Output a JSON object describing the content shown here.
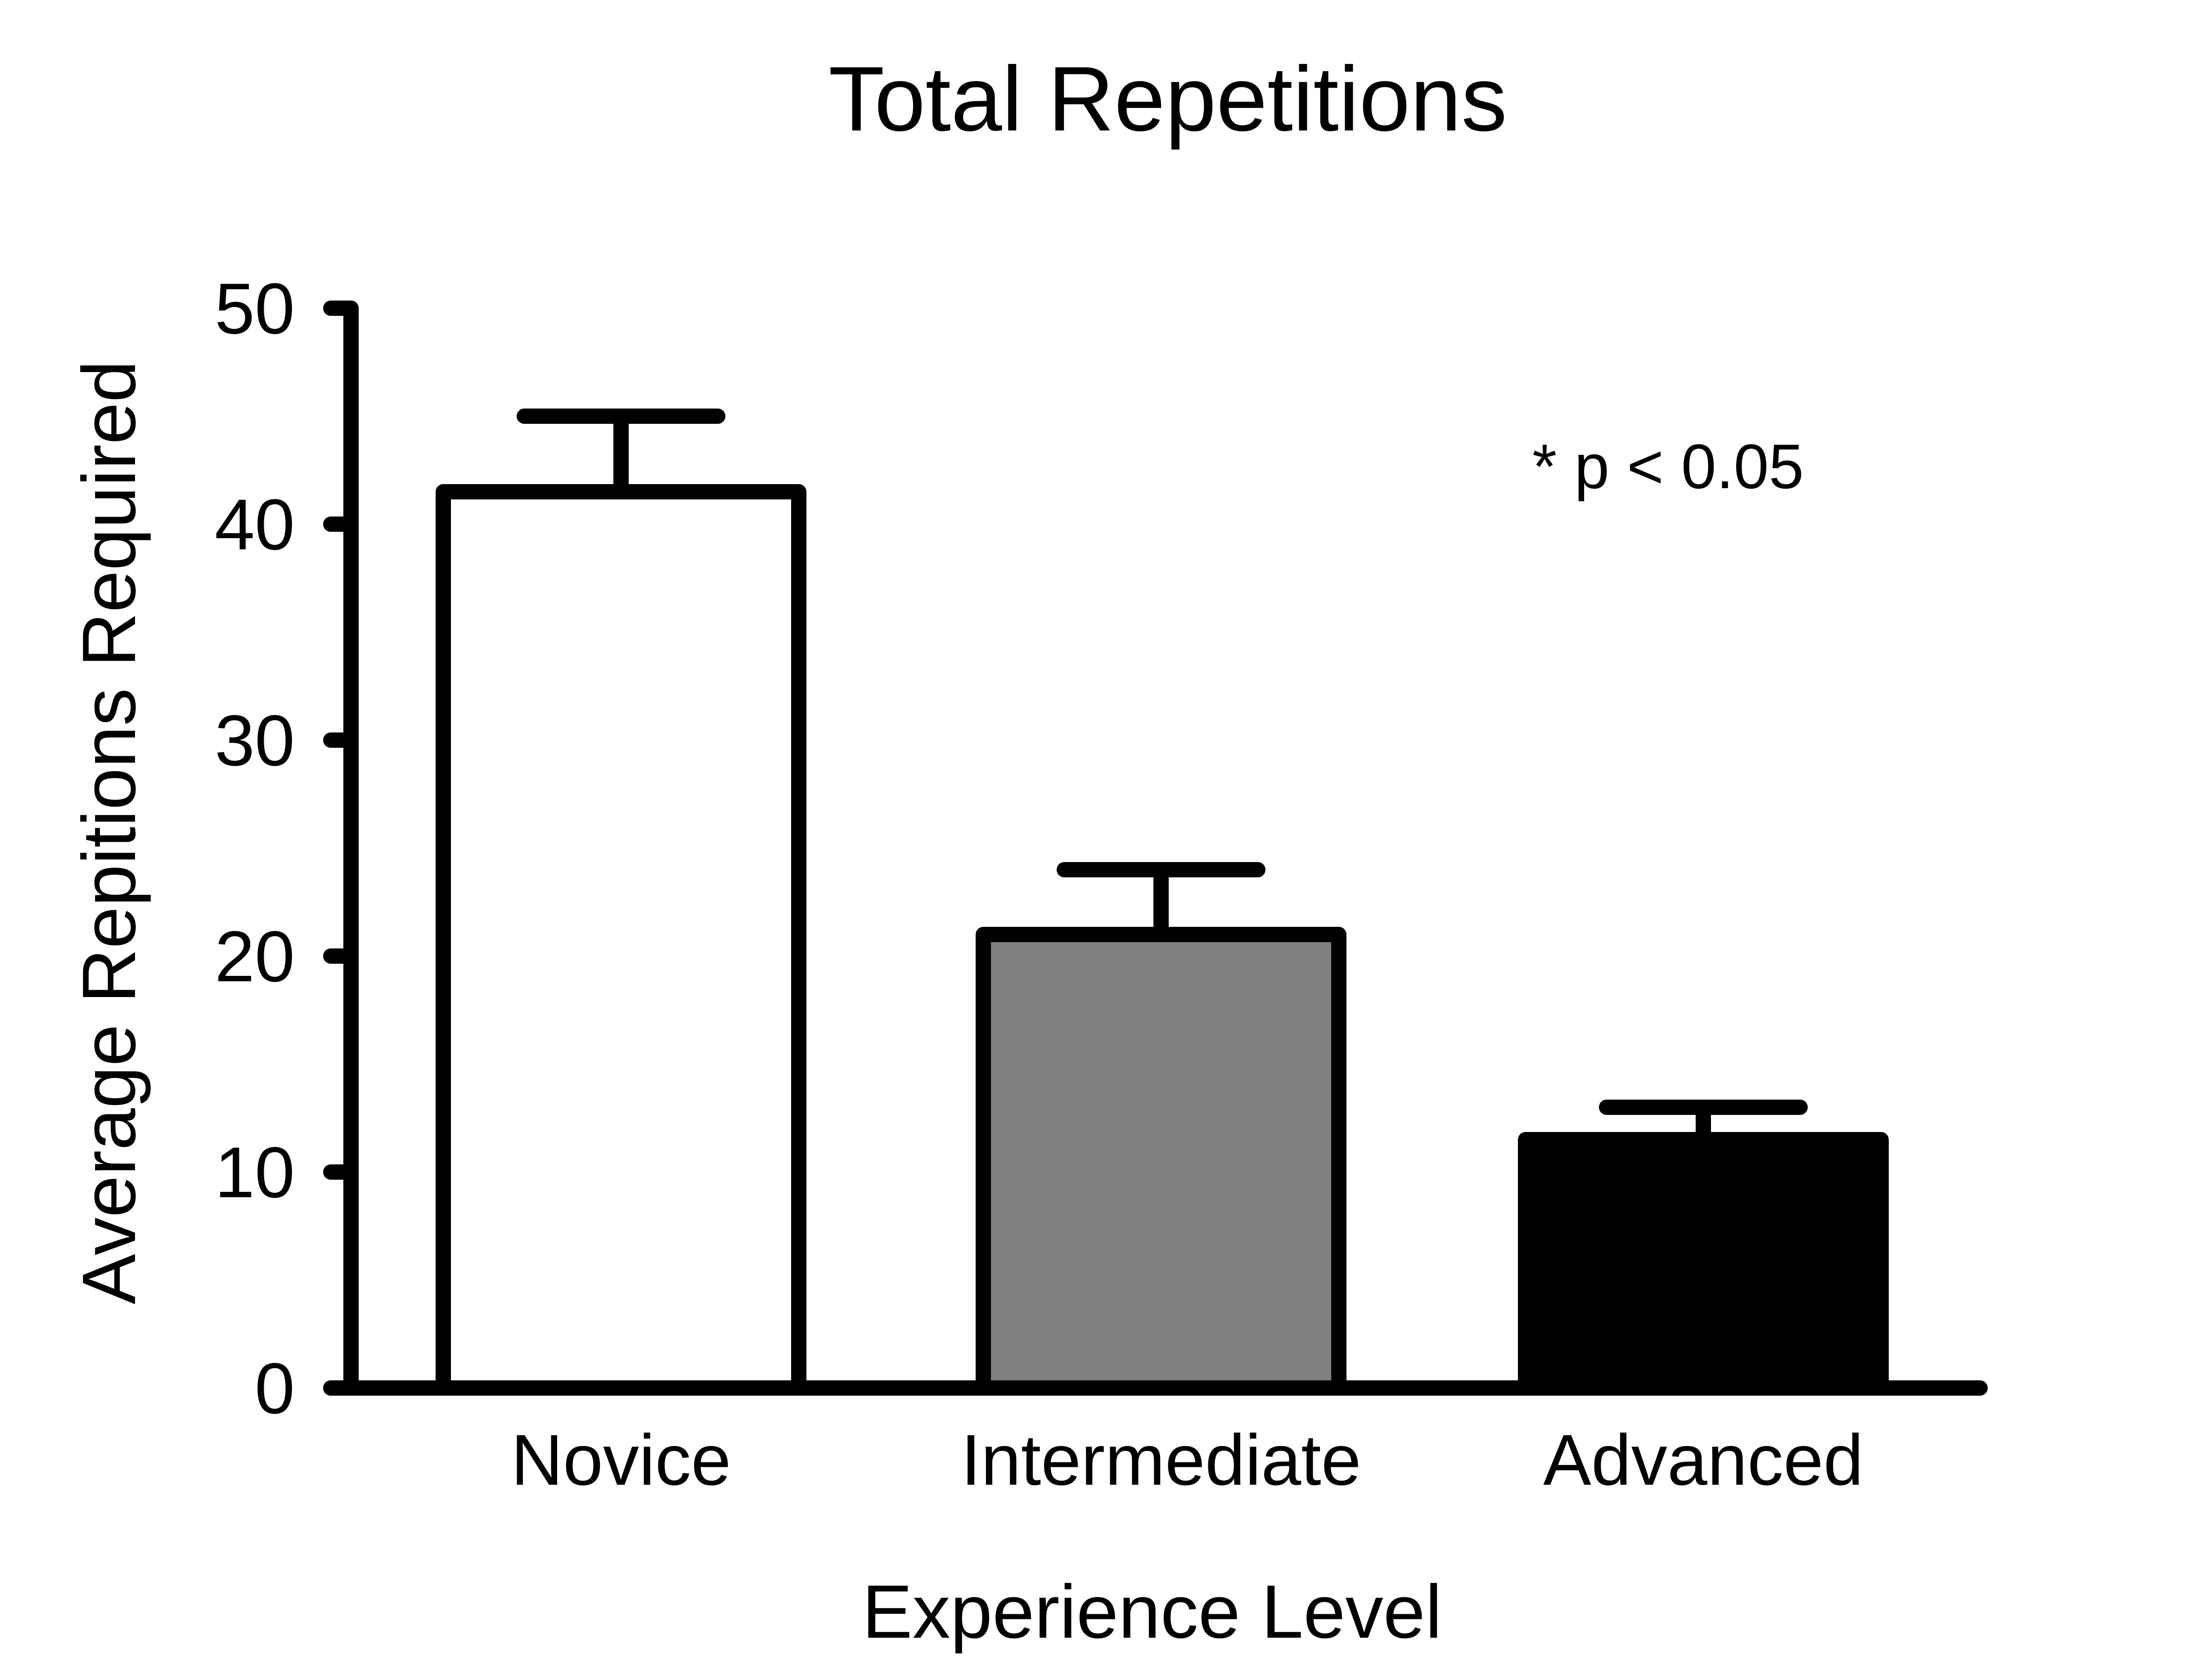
{
  "chart_data": {
    "type": "bar",
    "title": "Total Repetitions",
    "xlabel": "Experience Level",
    "ylabel": "Average Repitions Required",
    "categories": [
      "Novice",
      "Intermediate",
      "Advanced"
    ],
    "values": [
      41.5,
      21.0,
      11.5
    ],
    "error_upper": [
      45.0,
      24.0,
      13.0
    ],
    "bar_colors": [
      "#ffffff",
      "#7f7f7f",
      "#000000"
    ],
    "ylim": [
      0,
      50
    ],
    "yticks": [
      0,
      10,
      20,
      30,
      40,
      50
    ],
    "ytick_labels": [
      "0",
      "10",
      "20",
      "30",
      "40",
      "50"
    ],
    "annotation": "* p < 0.05",
    "grid": false,
    "legend": false
  }
}
